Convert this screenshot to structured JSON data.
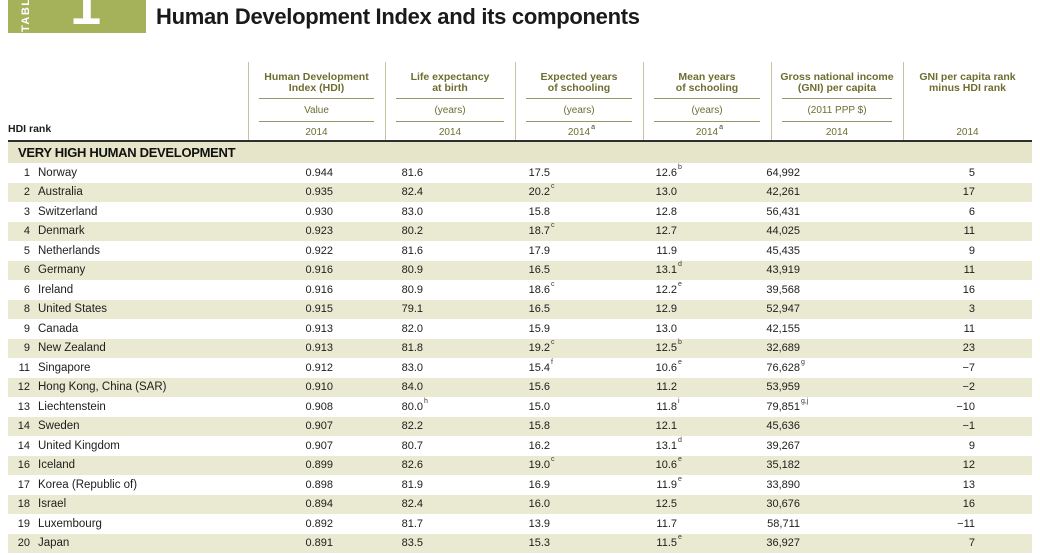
{
  "badge": {
    "word": "TABLE",
    "number": "1"
  },
  "title": "Human Development Index and its components",
  "hdi_rank_label": "HDI rank",
  "accent_colors": {
    "badge_green": "#a5b25a",
    "header_olive": "#6d6e30",
    "stripe": "#eae9d2",
    "section_band": "#e7e5c9"
  },
  "columns": [
    {
      "title": "Human Development\nIndex (HDI)",
      "subtitle": "Value",
      "year": "2014"
    },
    {
      "title": "Life expectancy\nat birth",
      "subtitle": "(years)",
      "year": "2014"
    },
    {
      "title": "Expected years\nof schooling",
      "subtitle": "(years)",
      "year": "2014",
      "year_sup": "a"
    },
    {
      "title": "Mean years\nof schooling",
      "subtitle": "(years)",
      "year": "2014",
      "year_sup": "a"
    },
    {
      "title": "Gross national income\n(GNI) per capita",
      "subtitle": "(2011 PPP $)",
      "year": "2014"
    },
    {
      "title": "GNI per capita rank\nminus HDI rank",
      "subtitle": "",
      "year": "2014"
    }
  ],
  "section": "VERY HIGH HUMAN DEVELOPMENT",
  "rows": [
    {
      "rank": "1",
      "country": "Norway",
      "hdi": "0.944",
      "life": "81.6",
      "eys": "17.5",
      "mys": "12.6",
      "mys_sup": "b",
      "gni": "64,992",
      "diff": "5"
    },
    {
      "rank": "2",
      "country": "Australia",
      "hdi": "0.935",
      "life": "82.4",
      "eys": "20.2",
      "eys_sup": "c",
      "mys": "13.0",
      "gni": "42,261",
      "diff": "17"
    },
    {
      "rank": "3",
      "country": "Switzerland",
      "hdi": "0.930",
      "life": "83.0",
      "eys": "15.8",
      "mys": "12.8",
      "gni": "56,431",
      "diff": "6"
    },
    {
      "rank": "4",
      "country": "Denmark",
      "hdi": "0.923",
      "life": "80.2",
      "eys": "18.7",
      "eys_sup": "c",
      "mys": "12.7",
      "gni": "44,025",
      "diff": "11"
    },
    {
      "rank": "5",
      "country": "Netherlands",
      "hdi": "0.922",
      "life": "81.6",
      "eys": "17.9",
      "mys": "11.9",
      "gni": "45,435",
      "diff": "9"
    },
    {
      "rank": "6",
      "country": "Germany",
      "hdi": "0.916",
      "life": "80.9",
      "eys": "16.5",
      "mys": "13.1",
      "mys_sup": "d",
      "gni": "43,919",
      "diff": "11"
    },
    {
      "rank": "6",
      "country": "Ireland",
      "hdi": "0.916",
      "life": "80.9",
      "eys": "18.6",
      "eys_sup": "c",
      "mys": "12.2",
      "mys_sup": "e",
      "gni": "39,568",
      "diff": "16"
    },
    {
      "rank": "8",
      "country": "United States",
      "hdi": "0.915",
      "life": "79.1",
      "eys": "16.5",
      "mys": "12.9",
      "gni": "52,947",
      "diff": "3"
    },
    {
      "rank": "9",
      "country": "Canada",
      "hdi": "0.913",
      "life": "82.0",
      "eys": "15.9",
      "mys": "13.0",
      "gni": "42,155",
      "diff": "11"
    },
    {
      "rank": "9",
      "country": "New Zealand",
      "hdi": "0.913",
      "life": "81.8",
      "eys": "19.2",
      "eys_sup": "c",
      "mys": "12.5",
      "mys_sup": "b",
      "gni": "32,689",
      "diff": "23"
    },
    {
      "rank": "11",
      "country": "Singapore",
      "hdi": "0.912",
      "life": "83.0",
      "eys": "15.4",
      "eys_sup": "f",
      "mys": "10.6",
      "mys_sup": "e",
      "gni": "76,628",
      "gni_sup": "g",
      "diff": "−7"
    },
    {
      "rank": "12",
      "country": "Hong Kong, China (SAR)",
      "hdi": "0.910",
      "life": "84.0",
      "eys": "15.6",
      "mys": "11.2",
      "gni": "53,959",
      "diff": "−2"
    },
    {
      "rank": "13",
      "country": "Liechtenstein",
      "hdi": "0.908",
      "life": "80.0",
      "life_sup": "h",
      "eys": "15.0",
      "mys": "11.8",
      "mys_sup": "i",
      "gni": "79,851",
      "gni_sup": "g,j",
      "diff": "−10"
    },
    {
      "rank": "14",
      "country": "Sweden",
      "hdi": "0.907",
      "life": "82.2",
      "eys": "15.8",
      "mys": "12.1",
      "gni": "45,636",
      "diff": "−1"
    },
    {
      "rank": "14",
      "country": "United Kingdom",
      "hdi": "0.907",
      "life": "80.7",
      "eys": "16.2",
      "mys": "13.1",
      "mys_sup": "d",
      "gni": "39,267",
      "diff": "9"
    },
    {
      "rank": "16",
      "country": "Iceland",
      "hdi": "0.899",
      "life": "82.6",
      "eys": "19.0",
      "eys_sup": "c",
      "mys": "10.6",
      "mys_sup": "e",
      "gni": "35,182",
      "diff": "12"
    },
    {
      "rank": "17",
      "country": "Korea (Republic of)",
      "hdi": "0.898",
      "life": "81.9",
      "eys": "16.9",
      "mys": "11.9",
      "mys_sup": "e",
      "gni": "33,890",
      "diff": "13"
    },
    {
      "rank": "18",
      "country": "Israel",
      "hdi": "0.894",
      "life": "82.4",
      "eys": "16.0",
      "mys": "12.5",
      "gni": "30,676",
      "diff": "16"
    },
    {
      "rank": "19",
      "country": "Luxembourg",
      "hdi": "0.892",
      "life": "81.7",
      "eys": "13.9",
      "mys": "11.7",
      "gni": "58,711",
      "diff": "−11"
    },
    {
      "rank": "20",
      "country": "Japan",
      "hdi": "0.891",
      "life": "83.5",
      "eys": "15.3",
      "mys": "11.5",
      "mys_sup": "e",
      "gni": "36,927",
      "diff": "7"
    }
  ]
}
